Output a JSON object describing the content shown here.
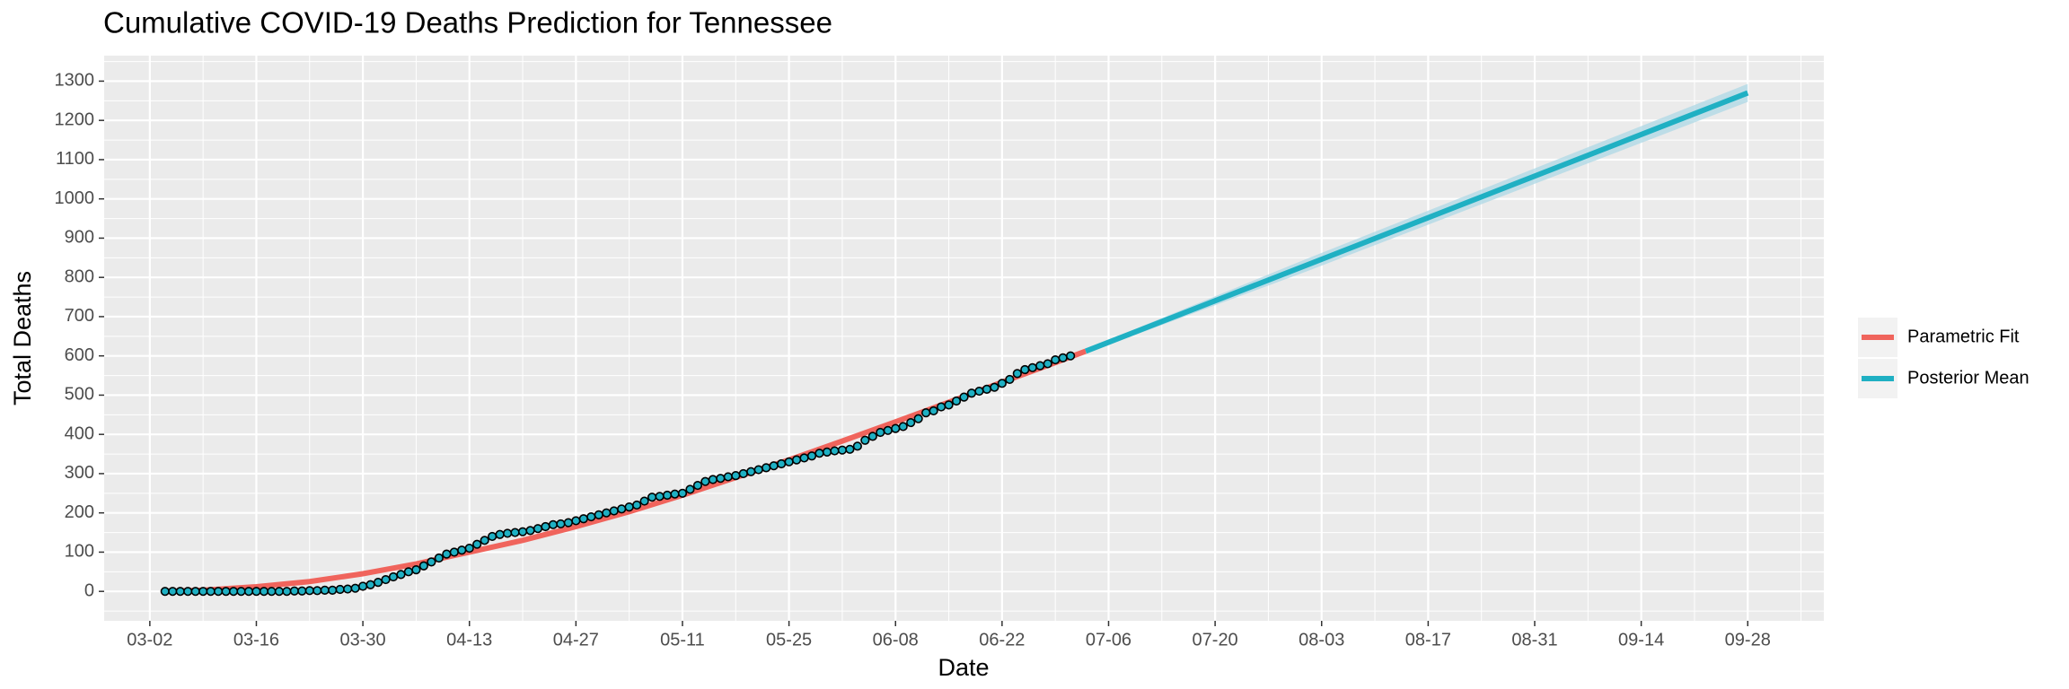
{
  "chart_data": {
    "type": "line",
    "title": "Cumulative COVID-19 Deaths Prediction for Tennessee",
    "x_label": "Date",
    "y_label": "Total Deaths",
    "xlim": [
      "02-25",
      "10-08"
    ],
    "xticks": [
      "03-02",
      "03-16",
      "03-30",
      "04-13",
      "04-27",
      "05-11",
      "05-25",
      "06-08",
      "06-22",
      "07-06",
      "07-20",
      "08-03",
      "08-17",
      "08-31",
      "09-14",
      "09-28"
    ],
    "ylim": [
      -75,
      1365
    ],
    "yticks": [
      0,
      100,
      200,
      300,
      400,
      500,
      600,
      700,
      800,
      900,
      1000,
      1100,
      1200,
      1300
    ],
    "grid": true,
    "legend": "right",
    "series": [
      {
        "name": "Parametric Fit",
        "color": "#f0645c",
        "x": [
          "03-04",
          "03-09",
          "03-16",
          "03-23",
          "03-30",
          "04-06",
          "04-13",
          "04-20",
          "04-27",
          "05-04",
          "05-11",
          "05-18",
          "05-25",
          "06-01",
          "06-08",
          "06-15",
          "06-22",
          "06-29",
          "07-03"
        ],
        "values": [
          0,
          3,
          12,
          25,
          45,
          70,
          100,
          130,
          165,
          203,
          245,
          290,
          335,
          383,
          432,
          482,
          533,
          583,
          612
        ]
      },
      {
        "name": "Posterior Mean",
        "color": "#1fb0c3",
        "band_color": "#add8e6",
        "x": [
          "07-03",
          "08-01",
          "09-28"
        ],
        "values": [
          612,
          831,
          1270
        ],
        "lower": [
          607,
          815,
          1247
        ],
        "upper": [
          617,
          847,
          1293
        ]
      }
    ],
    "points": {
      "color": "#1fb0c3",
      "x": [
        "03-04",
        "03-05",
        "03-06",
        "03-07",
        "03-08",
        "03-09",
        "03-10",
        "03-11",
        "03-12",
        "03-13",
        "03-14",
        "03-15",
        "03-16",
        "03-17",
        "03-18",
        "03-19",
        "03-20",
        "03-21",
        "03-22",
        "03-23",
        "03-24",
        "03-25",
        "03-26",
        "03-27",
        "03-28",
        "03-29",
        "03-30",
        "03-31",
        "04-01",
        "04-02",
        "04-03",
        "04-04",
        "04-05",
        "04-06",
        "04-07",
        "04-08",
        "04-09",
        "04-10",
        "04-11",
        "04-12",
        "04-13",
        "04-14",
        "04-15",
        "04-16",
        "04-17",
        "04-18",
        "04-19",
        "04-20",
        "04-21",
        "04-22",
        "04-23",
        "04-24",
        "04-25",
        "04-26",
        "04-27",
        "04-28",
        "04-29",
        "04-30",
        "05-01",
        "05-02",
        "05-03",
        "05-04",
        "05-05",
        "05-06",
        "05-07",
        "05-08",
        "05-09",
        "05-10",
        "05-11",
        "05-12",
        "05-13",
        "05-14",
        "05-15",
        "05-16",
        "05-17",
        "05-18",
        "05-19",
        "05-20",
        "05-21",
        "05-22",
        "05-23",
        "05-24",
        "05-25",
        "05-26",
        "05-27",
        "05-28",
        "05-29",
        "05-30",
        "05-31",
        "06-01",
        "06-02",
        "06-03",
        "06-04",
        "06-05",
        "06-06",
        "06-07",
        "06-08",
        "06-09",
        "06-10",
        "06-11",
        "06-12",
        "06-13",
        "06-14",
        "06-15",
        "06-16",
        "06-17",
        "06-18",
        "06-19",
        "06-20",
        "06-21",
        "06-22",
        "06-23",
        "06-24",
        "06-25",
        "06-26",
        "06-27",
        "06-28",
        "06-29",
        "06-30",
        "07-01"
      ],
      "values": [
        0,
        0,
        0,
        0,
        0,
        0,
        0,
        0,
        0,
        0,
        0,
        0,
        0,
        0,
        0,
        0,
        0,
        1,
        1,
        2,
        2,
        3,
        3,
        5,
        6,
        8,
        13,
        17,
        23,
        30,
        37,
        43,
        50,
        55,
        65,
        75,
        85,
        95,
        100,
        105,
        110,
        120,
        130,
        140,
        145,
        148,
        150,
        152,
        155,
        160,
        165,
        170,
        172,
        175,
        180,
        185,
        190,
        195,
        200,
        205,
        210,
        215,
        220,
        230,
        240,
        242,
        245,
        248,
        250,
        260,
        270,
        280,
        285,
        288,
        292,
        295,
        300,
        305,
        310,
        315,
        320,
        325,
        330,
        335,
        340,
        345,
        352,
        355,
        358,
        360,
        362,
        370,
        385,
        395,
        405,
        410,
        415,
        420,
        430,
        440,
        455,
        460,
        470,
        475,
        485,
        495,
        505,
        510,
        515,
        520,
        530,
        540,
        555,
        565,
        570,
        575,
        580,
        590,
        595,
        600
      ]
    }
  }
}
